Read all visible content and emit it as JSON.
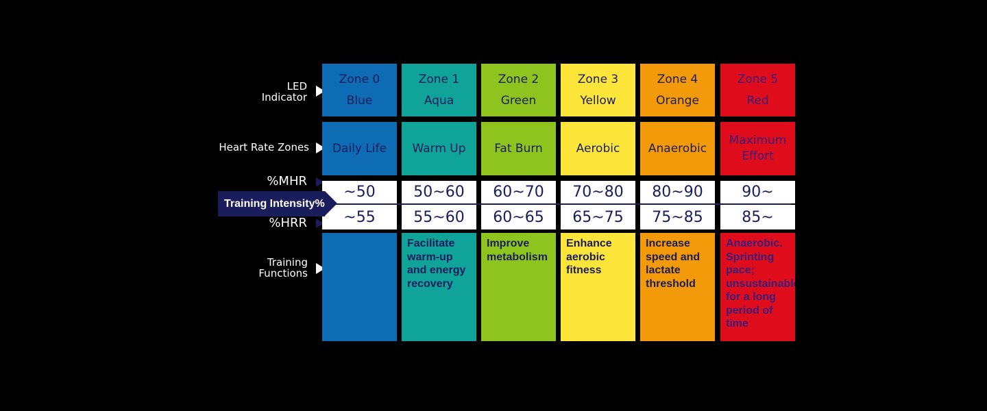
{
  "row_labels": {
    "led": "LED\nIndicator",
    "hrz": "Heart Rate Zones",
    "mhr": "%MHR",
    "hrr": "%HRR",
    "func": "Training\nFunctions"
  },
  "training_intensity": "Training Intensity%",
  "zones": [
    {
      "zone": "Zone 0",
      "color_name": "Blue",
      "heart_rate_zone": "Daily Life",
      "mhr": "~50",
      "hrr": "~55",
      "function": "",
      "color": "#0e6cb5"
    },
    {
      "zone": "Zone 1",
      "color_name": "Aqua",
      "heart_rate_zone": "Warm Up",
      "mhr": "50~60",
      "hrr": "55~60",
      "function": "Facilitate\nwarm-up\nand energy\nrecovery",
      "color": "#0fa39a"
    },
    {
      "zone": "Zone 2",
      "color_name": "Green",
      "heart_rate_zone": "Fat Burn",
      "mhr": "60~70",
      "hrr": "60~65",
      "function": "Improve\nmetabolism",
      "color": "#8fc41f"
    },
    {
      "zone": "Zone 3",
      "color_name": "Yellow",
      "heart_rate_zone": "Aerobic",
      "mhr": "70~80",
      "hrr": "65~75",
      "function": "Enhance\naerobic\nfitness",
      "color": "#fde53a"
    },
    {
      "zone": "Zone 4",
      "color_name": "Orange",
      "heart_rate_zone": "Anaerobic",
      "mhr": "80~90",
      "hrr": "75~85",
      "function": "Increase\nspeed and\nlactate\nthreshold",
      "color": "#f39a0b"
    },
    {
      "zone": "Zone 5",
      "color_name": "Red",
      "heart_rate_zone": "Maximum\nEffort",
      "mhr": "90~",
      "hrr": "85~",
      "function": "Anaerobic.\nSprinting\npace;\nunsustainable\nfor a long\nperiod of\ntime",
      "color": "#df0d1c"
    }
  ]
}
